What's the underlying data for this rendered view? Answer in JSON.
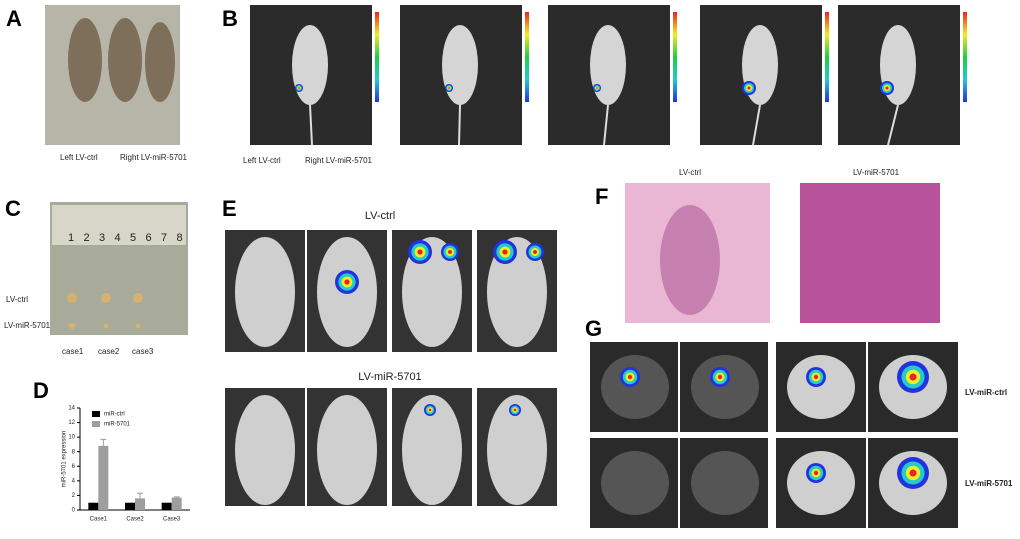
{
  "panels": {
    "A": {
      "label": "A",
      "captions": [
        "Left LV-ctrl",
        "Right LV-miR-5701"
      ]
    },
    "B": {
      "label": "B",
      "captions": [
        "Left LV-ctrl",
        "Right LV-miR-5701"
      ]
    },
    "C": {
      "label": "C",
      "ruler": [
        "1",
        "2",
        "3",
        "4",
        "5",
        "6",
        "7",
        "8"
      ],
      "rows": [
        "LV-ctrl",
        "LV-miR-5701"
      ],
      "cases": [
        "case1",
        "case2",
        "case3"
      ]
    },
    "D": {
      "label": "D"
    },
    "E": {
      "label": "E",
      "rows": [
        "LV-ctrl",
        "LV-miR-5701"
      ]
    },
    "F": {
      "label": "F",
      "columns": [
        "LV-ctrl",
        "LV-miR-5701"
      ]
    },
    "G": {
      "label": "G",
      "rows": [
        "LV-miR-ctrl",
        "LV-miR-5701"
      ]
    }
  },
  "chart_data": {
    "type": "bar",
    "y_label": "miR-5701 expression",
    "categories": [
      "Case1",
      "Case2",
      "Case3"
    ],
    "series": [
      {
        "name": "miR-ctrl",
        "color": "#000000",
        "values": [
          1,
          1,
          1
        ]
      },
      {
        "name": "miR-5701",
        "color": "#9e9e9e",
        "values": [
          8.8,
          1.6,
          1.7
        ],
        "errors": [
          0.9,
          0.7,
          0.1
        ]
      }
    ],
    "ylim": [
      0,
      14
    ],
    "yticks": [
      0,
      2,
      4,
      6,
      8,
      10,
      12,
      14
    ],
    "legend": "upper left"
  }
}
